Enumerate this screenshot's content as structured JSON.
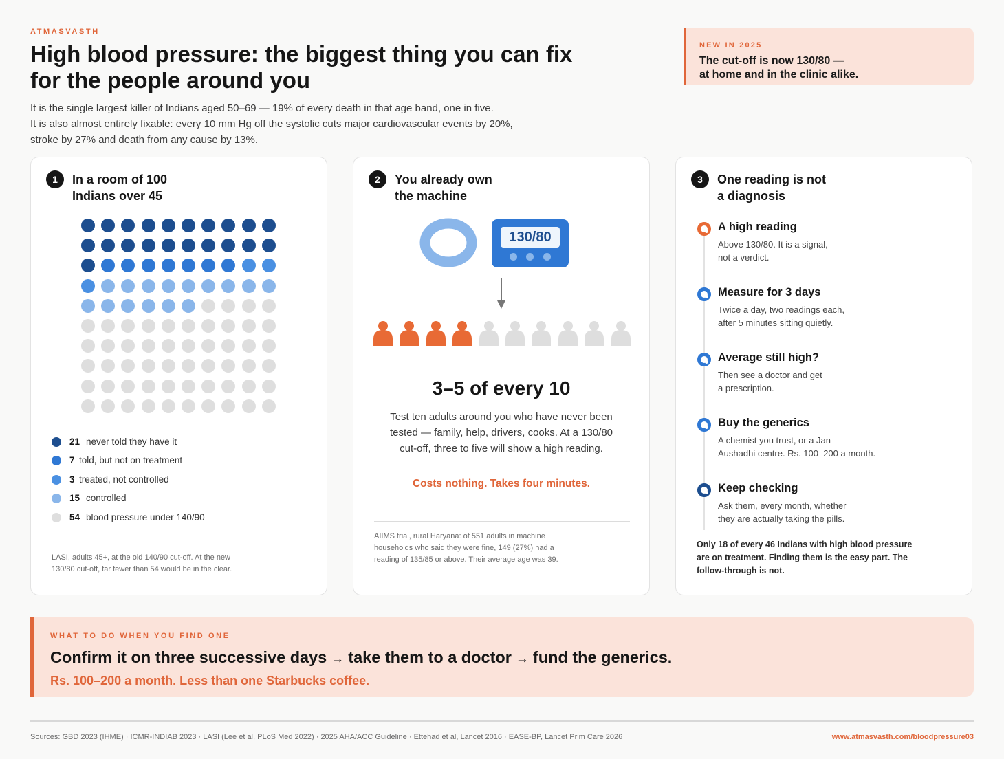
{
  "brand": "ATMASVASTH",
  "title": "High blood pressure: the biggest thing you can fix for the people around you",
  "intro": [
    "It is the single largest killer of Indians aged 50–69 — 19% of every death in that age band, one in five.",
    "It is also almost entirely fixable: every 10 mm Hg off the systolic cuts major cardiovascular events by 20%,",
    "stroke by 27% and death from any cause by 13%."
  ],
  "new_box": {
    "label": "NEW IN 2025",
    "line1": "The cut-off is now 130/80 —",
    "line2": "at home and in the clinic alike."
  },
  "card1": {
    "number": "1",
    "title_line1": "In a room of 100",
    "title_line2": "Indians over 45",
    "legend": [
      {
        "count": "21",
        "text": "never told they have it",
        "color": "#1d4e8f"
      },
      {
        "count": "7",
        "text": "told, but not on treatment",
        "color": "#2f78d4"
      },
      {
        "count": "3",
        "text": "treated, not controlled",
        "color": "#4a90e2"
      },
      {
        "count": "15",
        "text": "controlled",
        "color": "#8ab6ea"
      },
      {
        "count": "54",
        "text": "blood pressure under 140/90",
        "color": "#dedede"
      }
    ],
    "note_line1": "LASI, adults 45+, at the old 140/90 cut-off. At the new",
    "note_line2": "130/80 cut-off, far fewer than 54 would be in the clear."
  },
  "card2": {
    "number": "2",
    "title_line1": "You already own",
    "title_line2": "the machine",
    "monitor_reading": "130/80",
    "people_total": 10,
    "people_highlighted": 4,
    "highlight_color": "#e86a35",
    "muted_color": "#dedede",
    "big_stat": "3–5 of every 10",
    "body": [
      "Test ten adults around you who have never been",
      "tested — family, help, drivers, cooks. At a 130/80",
      "cut-off, three to five will show a high reading."
    ],
    "cost": "Costs nothing. Takes four minutes.",
    "note": [
      "AIIMS trial, rural Haryana: of 551 adults in machine",
      "households who said they were fine, 149 (27%) had a",
      "reading of 135/85 or above. Their average age was 39."
    ]
  },
  "card3": {
    "number": "3",
    "title_line1": "One reading is not",
    "title_line2": "a diagnosis",
    "steps": [
      {
        "title": "A high reading",
        "line1": "Above 130/80. It is a signal,",
        "line2": "not a verdict.",
        "color": "#e86a35"
      },
      {
        "title": "Measure for 3 days",
        "line1": "Twice a day, two readings each,",
        "line2": "after 5 minutes sitting quietly.",
        "color": "#2f78d4"
      },
      {
        "title": "Average still high?",
        "line1": "Then see a doctor and get",
        "line2": "a prescription.",
        "color": "#2f78d4"
      },
      {
        "title": "Buy the generics",
        "line1": "A chemist you trust, or a Jan",
        "line2": "Aushadhi centre. Rs. 100–200 a month.",
        "color": "#2f78d4"
      },
      {
        "title": "Keep checking",
        "line1": "Ask them, every month, whether",
        "line2": "they are actually taking the pills.",
        "color": "#1d4e8f"
      }
    ],
    "note": "Only 18 of every 46 Indians with high blood pressure are on treatment. Finding them is the easy part. The follow-through is not."
  },
  "banner": {
    "label": "WHAT TO DO WHEN YOU FIND ONE",
    "step1": "Confirm it on three successive days",
    "arrow": "→",
    "step2": "take them to a doctor",
    "step3": "fund the generics.",
    "sub": "Rs. 100–200 a month. Less than one Starbucks coffee."
  },
  "footer": {
    "sources": "Sources: GBD 2023 (IHME) · ICMR-INDIAB 2023 · LASI (Lee et al, PLoS Med 2022) · 2025 AHA/ACC Guideline · Ettehad et al, Lancet 2016 · EASE-BP, Lancet Prim Care 2026",
    "url": "www.atmasvasth.com/bloodpressure03"
  }
}
